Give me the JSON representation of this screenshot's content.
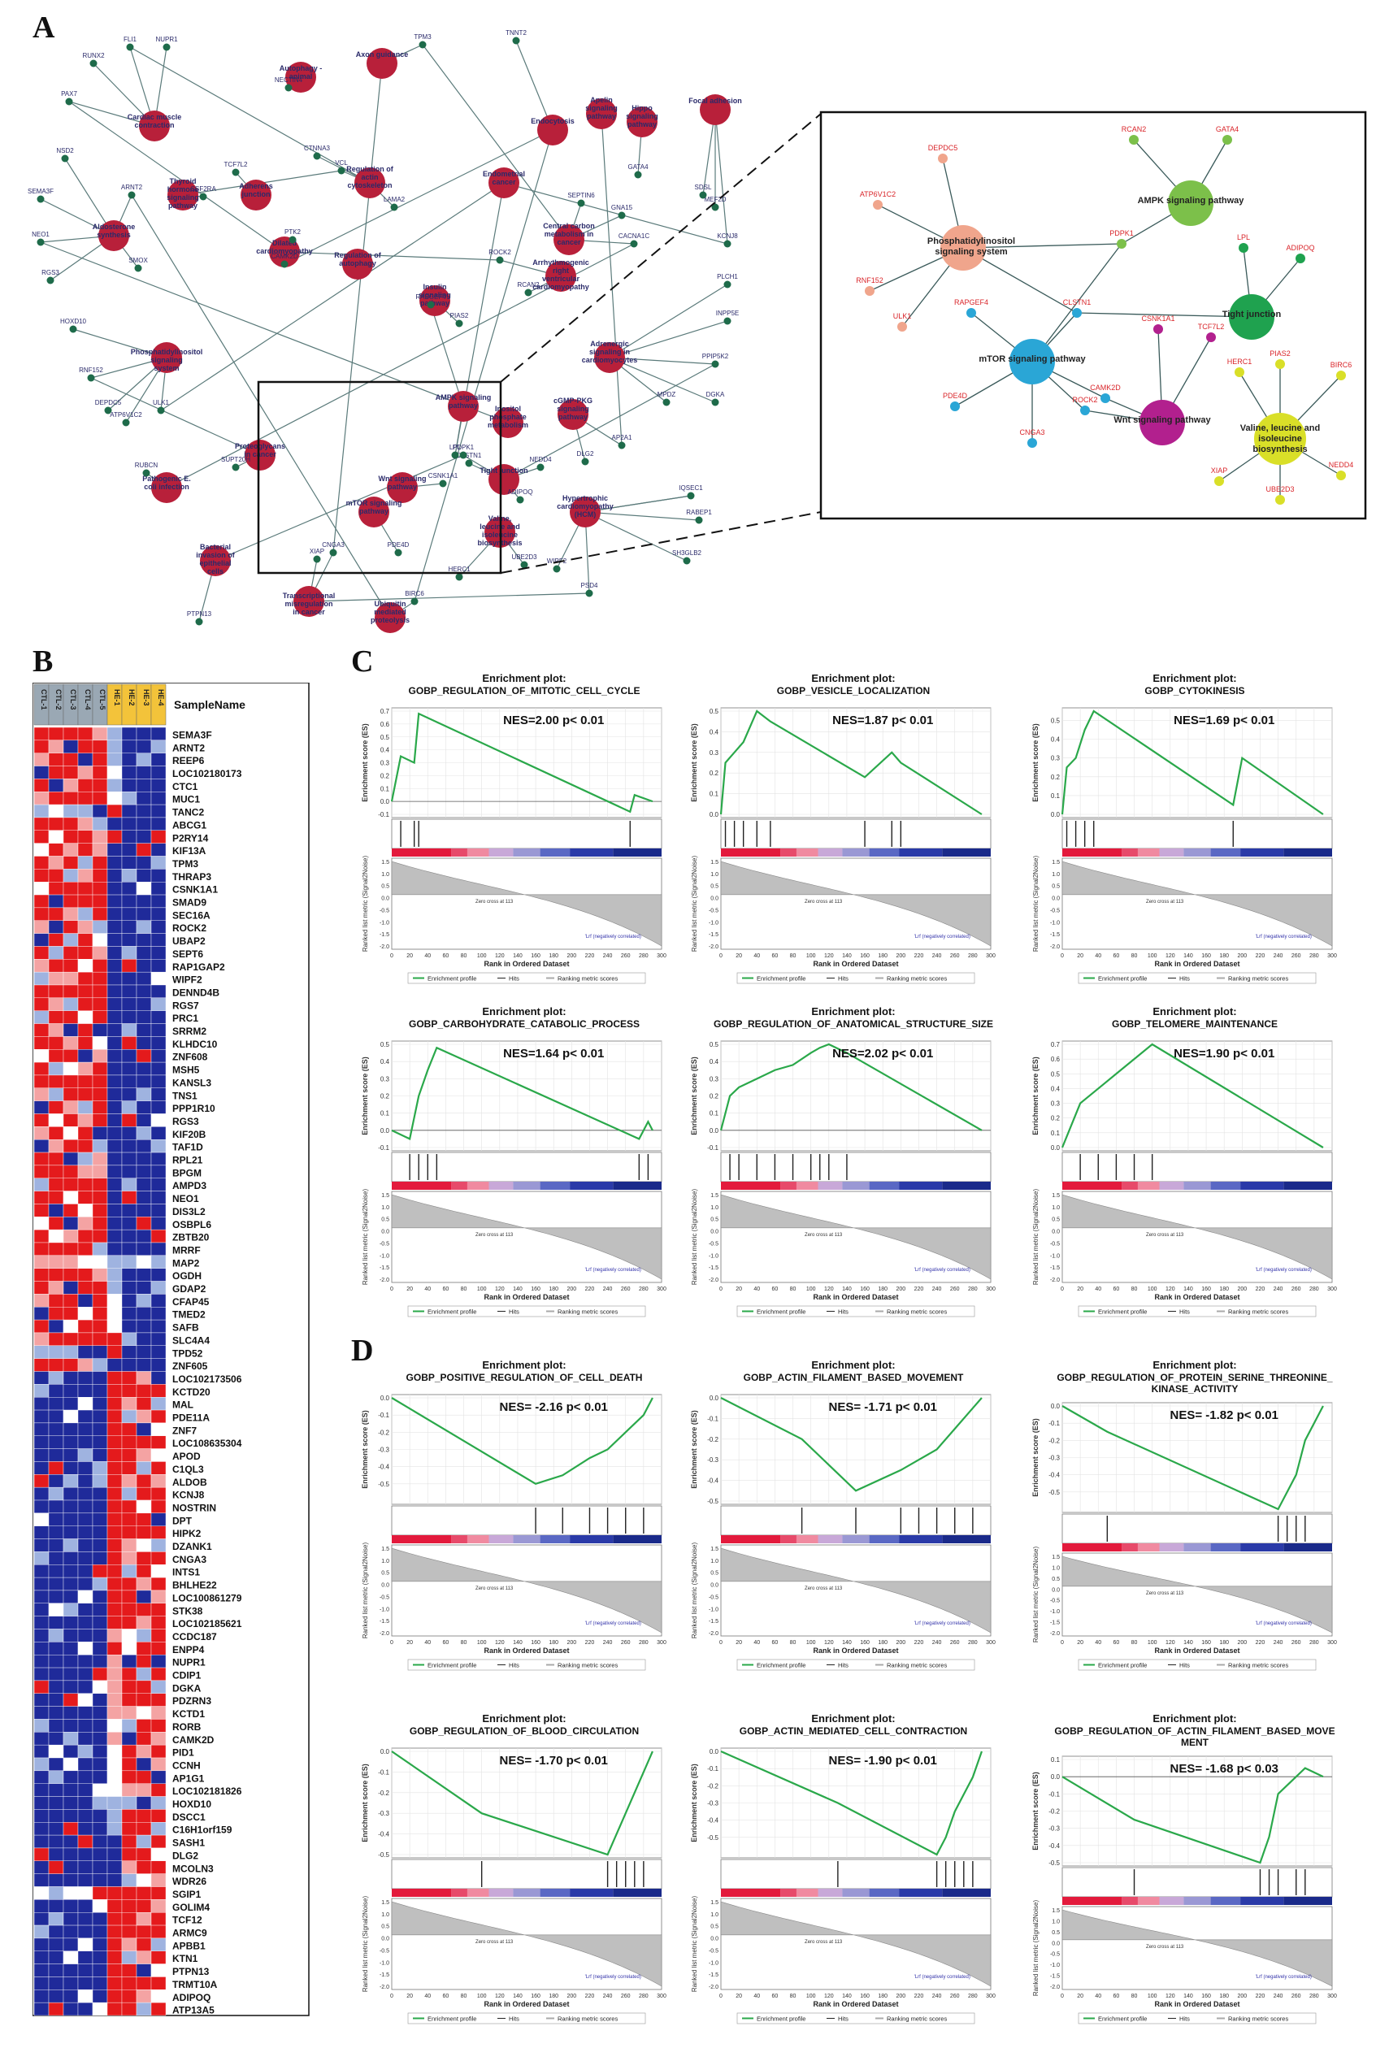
{
  "panels": {
    "A": "A",
    "B": "B",
    "C": "C",
    "D": "D"
  },
  "network": {
    "pathway_nodes": [
      "Autophagy - animal",
      "Axon guidance",
      "Cardiac muscle contraction",
      "Apelin signaling pathway",
      "Aldosterone synthesis",
      "Endocytosis",
      "Hippo signaling pathway",
      "Focal adhesion",
      "Thyroid hormone signaling pathway",
      "Regulation of actin cytoskeleton",
      "Adherens junction",
      "Phosphatidylinositol signaling system",
      "Dilated cardiomyopathy",
      "Regulation of autophagy",
      "Insulin signaling pathway",
      "Arrhythmogenic right ventricular cardiomyopathy (ARVC)",
      "AMPK signaling pathway",
      "Inositol phosphate metabolism",
      "cGMP-PKG signaling pathway",
      "Tight junction",
      "Wnt signaling pathway",
      "Valine, leucine and isoleucine biosynthesis",
      "Hypertrophic cardiomyopathy (HCM)",
      "Pathogenic E. coli infection",
      "Bacterial invasion of epithelial cells",
      "Transcriptional misregulation in cancer",
      "Ubiquitin mediated proteolysis",
      "Proteoglycans in cancer",
      "mTOR signaling pathway",
      "Central carbon metabolism in cancer",
      "Endometrial cancer",
      "Adrenergic signaling in cardiomyocytes"
    ],
    "gene_nodes": [
      "FLI1",
      "NUPR1",
      "RUNX2",
      "PAX7",
      "NSD2",
      "SEMA3F",
      "NEO1",
      "RGS3",
      "HOXD10",
      "RNF152",
      "DEPDC5",
      "ATP6V1C2",
      "ULK1",
      "RUBCN",
      "PTPN13",
      "ARNT2",
      "SMOX",
      "CSF2RA",
      "CAMK2D",
      "TCF7L2",
      "NECTIN4",
      "TPM3",
      "TNNT2",
      "CTNNA3",
      "VCL",
      "LAMA2",
      "PTK2",
      "RAPGEF4",
      "PIAS2",
      "CLSTN1",
      "PDPK1",
      "ADIPOQ",
      "CSNK1A1",
      "CNGA3",
      "PDE4D",
      "XIAP",
      "BIRC6",
      "HERC1",
      "UBE2D3",
      "LPL",
      "NEDD4",
      "DLG2",
      "AP2A1",
      "MPDZ",
      "DGKA",
      "PPIP5K2",
      "INPP5E",
      "PLCH1",
      "KCNJ8",
      "MEF2D",
      "SDSL",
      "CACNA1C",
      "SEPTIN6",
      "GNA15",
      "ROCK2",
      "RCAN2",
      "GATA4",
      "IQSEC1",
      "RABEP1",
      "SH3GLB2",
      "PSD4",
      "WIPF2",
      "SUPT20H"
    ],
    "inset": {
      "pathways": [
        "Phosphatidylinositol signaling system",
        "AMPK signaling pathway",
        "Tight junction",
        "mTOR signaling pathway",
        "Wnt signaling pathway",
        "Valine, leucine and isoleucine biosynthesis"
      ],
      "genes": [
        "DEPDC5",
        "ATP6V1C2",
        "RNF152",
        "ULK1",
        "RCAN2",
        "GATA4",
        "PDPK1",
        "LPL",
        "ADIPOQ",
        "RAPGEF4",
        "CLSTN1",
        "CSNK1A1",
        "TCF7L2",
        "CAMK2D",
        "PDE4D",
        "ROCK2",
        "CNGA3",
        "PIAS2",
        "HERC1",
        "BIRC6",
        "XIAP",
        "UBE2D3",
        "NEDD4"
      ],
      "colors": {
        "pi": "#f0a58c",
        "ampk": "#7cc04a",
        "tight": "#1fa24f",
        "mtor": "#2aa6d6",
        "wnt": "#b2208e",
        "bcaa": "#d9df28"
      }
    }
  },
  "heatmap": {
    "header_label": "SampleName",
    "columns": [
      "CTL-1",
      "CTL-2",
      "CTL-3",
      "CTL-4",
      "CTL-5",
      "HE-1",
      "HE-2",
      "HE-3",
      "HE-4"
    ],
    "genes": [
      "SEMA3F",
      "ARNT2",
      "REEP6",
      "LOC102180173",
      "CTC1",
      "MUC1",
      "TANC2",
      "ABCG1",
      "P2RY14",
      "KIF13A",
      "TPM3",
      "THRAP3",
      "CSNK1A1",
      "SMAD9",
      "SEC16A",
      "ROCK2",
      "UBAP2",
      "SEPT6",
      "RAP1GAP2",
      "WIPF2",
      "DENND4B",
      "RGS7",
      "PRC1",
      "SRRM2",
      "KLHDC10",
      "ZNF608",
      "MSH5",
      "KANSL3",
      "TNS1",
      "PPP1R10",
      "RGS3",
      "KIF20B",
      "TAF1D",
      "RPL21",
      "BPGM",
      "AMPD3",
      "NEO1",
      "DIS3L2",
      "OSBPL6",
      "ZBTB20",
      "MRRF",
      "MAP2",
      "OGDH",
      "GDAP2",
      "CFAP45",
      "TMED2",
      "SAFB",
      "SLC4A4",
      "TPD52",
      "ZNF605",
      "LOC102173506",
      "KCTD20",
      "MAL",
      "PDE11A",
      "ZNF7",
      "LOC108635304",
      "APOD",
      "C1QL3",
      "ALDOB",
      "KCNJ8",
      "NOSTRIN",
      "DPT",
      "HIPK2",
      "DZANK1",
      "CNGA3",
      "INTS1",
      "BHLHE22",
      "LOC100861279",
      "STK38",
      "LOC102185621",
      "CCDC187",
      "ENPP4",
      "NUPR1",
      "CDIP1",
      "DGKA",
      "PDZRN3",
      "KCTD1",
      "RORB",
      "CAMK2D",
      "PID1",
      "CCNH",
      "AP1G1",
      "LOC102181826",
      "HOXD10",
      "DSCC1",
      "C16H1orf159",
      "SASH1",
      "DLG2",
      "MCOLN3",
      "WDR26",
      "SGIP1",
      "GOLIM4",
      "TCF12",
      "ARMC9",
      "APBB1",
      "KTN1",
      "PTPN13",
      "TRMT10A",
      "ADIPOQ",
      "ATP13A5"
    ],
    "palette": {
      "high": "#e41a1c",
      "mid_high": "#f4a3a3",
      "mid": "#ffffff",
      "mid_low": "#9fb3e0",
      "low": "#1f2a9a"
    }
  },
  "gsea_common": {
    "title_prefix": "Enrichment plot:",
    "y_label_es": "Enrichment score (ES)",
    "y_label_metric": "Ranked list metric (Signal2Noise)",
    "x_label": "Rank in Ordered Dataset",
    "pos_label": "'LL' (positively correlated)",
    "neg_label": "'Lrf (negatively correlated)",
    "zero_cross": "Zero cross at 113",
    "legend": [
      "Enrichment profile",
      "Hits",
      "Ranking metric scores"
    ],
    "x_ticks": [
      "0",
      "20",
      "40",
      "60",
      "80",
      "100",
      "120",
      "140",
      "160",
      "180",
      "200",
      "220",
      "240",
      "260",
      "280",
      "300"
    ]
  },
  "chart_data": [
    {
      "type": "line",
      "panel": "C",
      "title": "GOBP_REGULATION_OF_MITOTIC_CELL_CYCLE",
      "nes": "NES=2.00 p< 0.01",
      "ylim": [
        -0.1,
        0.7
      ],
      "x": [
        0,
        10,
        25,
        30,
        265,
        270,
        290
      ],
      "y": [
        0.0,
        0.35,
        0.3,
        0.68,
        -0.08,
        0.05,
        0.0
      ],
      "hits": [
        10,
        25,
        30,
        265
      ]
    },
    {
      "type": "line",
      "panel": "C",
      "title": "GOBP_VESICLE_LOCALIZATION",
      "nes": "NES=1.87 p< 0.01",
      "ylim": [
        0,
        0.5
      ],
      "x": [
        0,
        5,
        15,
        25,
        40,
        55,
        160,
        190,
        200,
        290
      ],
      "y": [
        0.0,
        0.25,
        0.3,
        0.35,
        0.5,
        0.45,
        0.18,
        0.3,
        0.25,
        0.0
      ],
      "hits": [
        5,
        15,
        25,
        40,
        55,
        160,
        190,
        200
      ]
    },
    {
      "type": "line",
      "panel": "C",
      "title": "GOBP_CYTOKINESIS",
      "nes": "NES=1.69 p< 0.01",
      "ylim": [
        0,
        0.55
      ],
      "x": [
        0,
        5,
        15,
        25,
        35,
        190,
        200,
        290
      ],
      "y": [
        0.0,
        0.25,
        0.3,
        0.45,
        0.55,
        0.05,
        0.3,
        0.0
      ],
      "hits": [
        5,
        15,
        25,
        35,
        190
      ]
    },
    {
      "type": "line",
      "panel": "C",
      "title": "GOBP_CARBOHYDRATE_CATABOLIC_PROCESS",
      "nes": "NES=1.64 p< 0.01",
      "ylim": [
        -0.1,
        0.5
      ],
      "x": [
        0,
        20,
        30,
        40,
        50,
        275,
        285,
        290
      ],
      "y": [
        0.0,
        -0.05,
        0.2,
        0.35,
        0.48,
        -0.05,
        0.05,
        0.0
      ],
      "hits": [
        20,
        30,
        40,
        50,
        275,
        285
      ]
    },
    {
      "type": "line",
      "panel": "C",
      "title": "GOBP_REGULATION_OF_ANATOMICAL_STRUCTURE_SIZE",
      "nes": "NES=2.02 p< 0.01",
      "ylim": [
        -0.1,
        0.5
      ],
      "x": [
        0,
        10,
        20,
        40,
        60,
        80,
        100,
        110,
        120,
        140,
        290
      ],
      "y": [
        0.0,
        0.2,
        0.25,
        0.3,
        0.35,
        0.38,
        0.45,
        0.48,
        0.5,
        0.45,
        0.0
      ],
      "hits": [
        10,
        20,
        40,
        60,
        80,
        100,
        110,
        120,
        140
      ]
    },
    {
      "type": "line",
      "panel": "C",
      "title": "GOBP_TELOMERE_MAINTENANCE",
      "nes": "NES=1.90 p< 0.01",
      "ylim": [
        0,
        0.7
      ],
      "x": [
        0,
        20,
        40,
        60,
        80,
        100,
        290
      ],
      "y": [
        0.0,
        0.3,
        0.4,
        0.5,
        0.6,
        0.7,
        0.0
      ],
      "hits": [
        20,
        40,
        60,
        80,
        100
      ]
    },
    {
      "type": "line",
      "panel": "D",
      "title": "GOBP_POSITIVE_REGULATION_OF_CELL_DEATH",
      "nes": "NES= -2.16 p< 0.01",
      "ylim": [
        -0.6,
        0.0
      ],
      "x": [
        0,
        160,
        190,
        220,
        240,
        260,
        280,
        290
      ],
      "y": [
        0.0,
        -0.5,
        -0.45,
        -0.35,
        -0.3,
        -0.2,
        -0.1,
        0.0
      ],
      "hits": [
        160,
        190,
        220,
        240,
        260,
        280
      ]
    },
    {
      "type": "line",
      "panel": "D",
      "title": "GOBP_ACTIN_FILAMENT_BASED_MOVEMENT",
      "nes": "NES= -1.71 p< 0.01",
      "ylim": [
        -0.5,
        0.0
      ],
      "x": [
        0,
        90,
        150,
        200,
        220,
        240,
        260,
        280,
        290
      ],
      "y": [
        0.0,
        -0.2,
        -0.45,
        -0.35,
        -0.3,
        -0.25,
        -0.15,
        -0.05,
        0.0
      ],
      "hits": [
        90,
        150,
        200,
        220,
        240,
        260,
        280
      ]
    },
    {
      "type": "line",
      "panel": "D",
      "title": "GOBP_REGULATION_OF_PROTEIN_SERINE_THREONINE_KINASE_ACTIVITY",
      "nes": "NES= -1.82 p< 0.01",
      "ylim": [
        -0.6,
        0.0
      ],
      "x": [
        0,
        50,
        240,
        250,
        260,
        270,
        290
      ],
      "y": [
        0.0,
        -0.15,
        -0.6,
        -0.5,
        -0.4,
        -0.2,
        0.0
      ],
      "hits": [
        50,
        240,
        250,
        260,
        270
      ]
    },
    {
      "type": "line",
      "panel": "D",
      "title": "GOBP_REGULATION_OF_BLOOD_CIRCULATION",
      "nes": "NES= -1.70 p< 0.01",
      "ylim": [
        -0.5,
        0.0
      ],
      "x": [
        0,
        100,
        240,
        250,
        260,
        270,
        280,
        290
      ],
      "y": [
        0.0,
        -0.3,
        -0.5,
        -0.4,
        -0.3,
        -0.2,
        -0.1,
        0.0
      ],
      "hits": [
        100,
        240,
        250,
        260,
        270,
        280
      ]
    },
    {
      "type": "line",
      "panel": "D",
      "title": "GOBP_ACTIN_MEDIATED_CELL_CONTRACTION",
      "nes": "NES= -1.90 p< 0.01",
      "ylim": [
        -0.6,
        0.0
      ],
      "x": [
        0,
        130,
        240,
        250,
        260,
        270,
        280,
        290
      ],
      "y": [
        0.0,
        -0.3,
        -0.6,
        -0.5,
        -0.35,
        -0.25,
        -0.15,
        0.0
      ],
      "hits": [
        130,
        240,
        250,
        260,
        270,
        280
      ]
    },
    {
      "type": "line",
      "panel": "D",
      "title": "GOBP_REGULATION_OF_ACTIN_FILAMENT_BASED_MOVEMENT",
      "nes": "NES= -1.68 p< 0.03",
      "ylim": [
        -0.5,
        0.1
      ],
      "x": [
        0,
        80,
        220,
        230,
        240,
        260,
        270,
        290
      ],
      "y": [
        0.0,
        -0.25,
        -0.5,
        -0.35,
        -0.1,
        0.0,
        0.05,
        0.0
      ],
      "hits": [
        80,
        220,
        230,
        240,
        260,
        270
      ]
    }
  ]
}
